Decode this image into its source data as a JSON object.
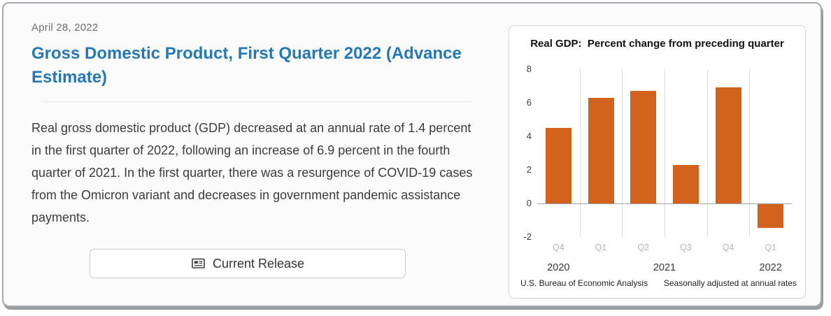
{
  "card": {
    "date": "April 28, 2022",
    "title": "Gross Domestic Product, First Quarter 2022 (Advance Estimate)",
    "summary": "Real gross domestic product (GDP) decreased at an annual rate of 1.4 percent in the first quarter of 2022, following an increase of 6.9 percent in the fourth quarter of 2021. In the first quarter, there was a resurgence of COVID-19 cases from the Omicron variant and decreases in government pandemic assistance payments.",
    "button_label": "Current Release",
    "button_icon": "newspaper-icon",
    "title_color": "#2478b6"
  },
  "chart_data": {
    "type": "bar",
    "title": "Real GDP:  Percent change from preceding quarter",
    "categories": [
      "Q4",
      "Q1",
      "Q2",
      "Q3",
      "Q4",
      "Q1"
    ],
    "values": [
      4.5,
      6.3,
      6.7,
      2.3,
      6.9,
      -1.4
    ],
    "years": [
      {
        "label": "2020",
        "pos": 0.5
      },
      {
        "label": "2021",
        "pos": 3.0
      },
      {
        "label": "2022",
        "pos": 5.5
      }
    ],
    "yticks": [
      8,
      6,
      4,
      2,
      0,
      -2
    ],
    "ylim": [
      -2,
      8
    ],
    "bar_color": "#d2611c",
    "grid": "vertical-category-boundaries",
    "legend": "none",
    "footnote_left": "U.S. Bureau of Economic Analysis",
    "footnote_right": "Seasonally adjusted at annual rates"
  }
}
